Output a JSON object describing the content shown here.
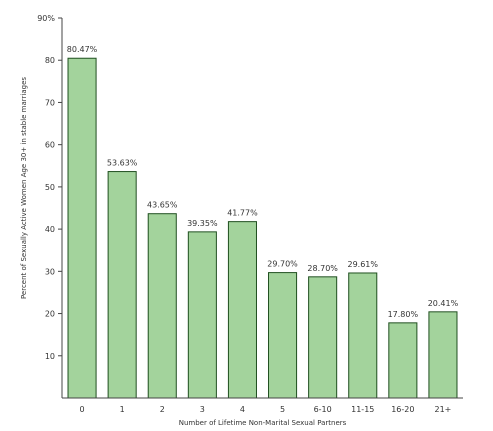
{
  "chart_data": {
    "type": "bar",
    "title": "",
    "xlabel": "Number of Lifetime Non-Marital Sexual Partners",
    "ylabel": "Percent of Sexually Active Women Age 30+ in stable marriages",
    "categories": [
      "0",
      "1",
      "2",
      "3",
      "4",
      "5",
      "6-10",
      "11-15",
      "16-20",
      "21+"
    ],
    "values": [
      80.47,
      53.63,
      43.65,
      39.35,
      41.77,
      29.7,
      28.7,
      29.61,
      17.8,
      20.41
    ],
    "data_labels": [
      "80.47%",
      "53.63%",
      "43.65%",
      "39.35%",
      "41.77%",
      "29.70%",
      "28.70%",
      "29.61%",
      "17.80%",
      "20.41%"
    ],
    "ylim": [
      0,
      90
    ],
    "yticks": [
      {
        "value": 10,
        "label": "10"
      },
      {
        "value": 20,
        "label": "20"
      },
      {
        "value": 30,
        "label": "30"
      },
      {
        "value": 40,
        "label": "40"
      },
      {
        "value": 50,
        "label": "50"
      },
      {
        "value": 60,
        "label": "60"
      },
      {
        "value": 70,
        "label": "70"
      },
      {
        "value": 80,
        "label": "80"
      },
      {
        "value": 90,
        "label": "90%"
      }
    ],
    "grid": false,
    "legend": "none",
    "bar_fill": "#a3d39c",
    "bar_stroke": "#1f4f1f",
    "axis_color": "#444444"
  }
}
